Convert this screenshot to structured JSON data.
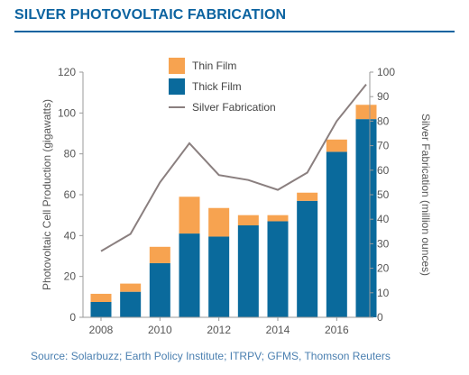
{
  "header": {
    "title": "SILVER PHOTOVOLTAIC FABRICATION"
  },
  "footer": {
    "source": "Source: Solarbuzz; Earth Policy Institute; ITRPV; GFMS, Thomson Reuters"
  },
  "chart_data": {
    "type": "bar",
    "subtype": "stacked-bar-with-line-secondary-axis",
    "x": [
      2008,
      2009,
      2010,
      2011,
      2012,
      2013,
      2014,
      2015,
      2016,
      2017
    ],
    "x_tick_labels": [
      "2008",
      "2010",
      "2012",
      "2014",
      "2016"
    ],
    "xlim": [
      2008,
      2017
    ],
    "ylabel": "Photovoltaic Cell Production (gigawatts)",
    "ylim": [
      0,
      120
    ],
    "y_ticks": [
      0,
      20,
      40,
      60,
      80,
      100,
      120
    ],
    "y2label": "Silver Fabrication (million ounces)",
    "y2lim": [
      0,
      100
    ],
    "y2_ticks": [
      0,
      10,
      20,
      30,
      40,
      50,
      60,
      70,
      80,
      90,
      100
    ],
    "series": [
      {
        "name": "Thick Film",
        "type": "bar",
        "axis": "left",
        "color": "#0a6a9c",
        "values": [
          7.5,
          12.5,
          26.5,
          41,
          39.5,
          45,
          47,
          57,
          81,
          97
        ]
      },
      {
        "name": "Thin Film",
        "type": "bar",
        "axis": "left",
        "color": "#f7a350",
        "values": [
          4,
          4,
          8,
          18,
          14,
          5,
          3,
          4,
          6,
          7
        ]
      },
      {
        "name": "Silver Fabrication",
        "type": "line",
        "axis": "right",
        "color": "#8a7f7f",
        "values": [
          27,
          34,
          55,
          71,
          58,
          56,
          52,
          59,
          80,
          95
        ]
      }
    ],
    "legend": {
      "position": "top-center",
      "entries": [
        "Thin Film",
        "Thick Film",
        "Silver Fabrication"
      ]
    },
    "grid": false
  }
}
